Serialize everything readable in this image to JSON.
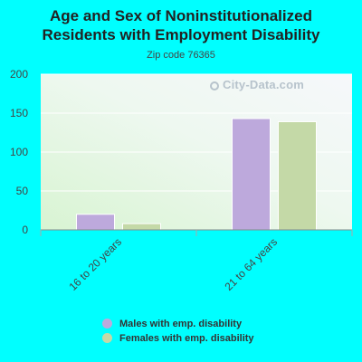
{
  "chart_data": {
    "type": "bar",
    "title_lines": [
      "Age and Sex of Noninstitutionalized",
      "Residents with Employment Disability"
    ],
    "subtitle": "Zip code 76365",
    "categories": [
      "16 to 20 years",
      "21 to 64 years"
    ],
    "series": [
      {
        "name": "Males with emp. disability",
        "values": [
          20,
          143
        ],
        "color": "#bda9dc"
      },
      {
        "name": "Females with emp. disability",
        "values": [
          8,
          139
        ],
        "color": "#c4d9a7"
      }
    ],
    "y_ticks": [
      "0",
      "50",
      "100",
      "150",
      "200"
    ],
    "ylim": [
      0,
      200
    ],
    "grid": true,
    "legend_placement": "bottom"
  },
  "watermark": "City-Data.com"
}
